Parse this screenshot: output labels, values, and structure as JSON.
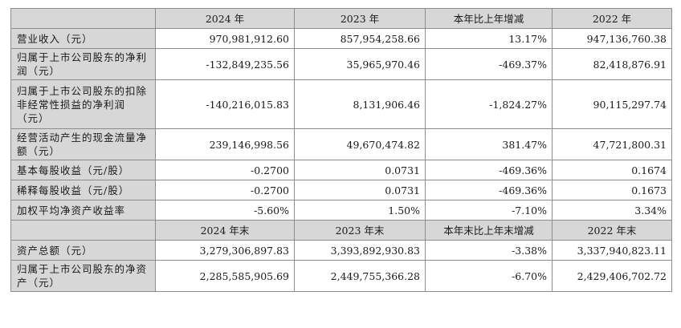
{
  "header1": [
    "",
    "2024 年",
    "2023 年",
    "本年比上年增减",
    "2022 年"
  ],
  "rows1": [
    {
      "label": "营业收入（元）",
      "values": [
        "970,981,912.60",
        "857,954,258.66",
        "13.17%",
        "947,136,760.38"
      ],
      "size": "h1"
    },
    {
      "label": "归属于上市公司股东的净利润（元）",
      "values": [
        "-132,849,235.56",
        "35,965,970.46",
        "-469.37%",
        "82,418,876.91"
      ],
      "size": "h2"
    },
    {
      "label": "归属于上市公司股东的扣除非经常性损益的净利润（元）",
      "values": [
        "-140,216,015.83",
        "8,131,906.46",
        "-1,824.27%",
        "90,115,297.74"
      ],
      "size": "h3"
    },
    {
      "label": "经营活动产生的现金流量净额（元）",
      "values": [
        "239,146,998.56",
        "49,670,474.82",
        "381.47%",
        "47,721,800.31"
      ],
      "size": "h2"
    },
    {
      "label": "基本每股收益（元/股）",
      "values": [
        "-0.2700",
        "0.0731",
        "-469.36%",
        "0.1674"
      ],
      "size": "h1"
    },
    {
      "label": "稀释每股收益（元/股）",
      "values": [
        "-0.2700",
        "0.0731",
        "-469.36%",
        "0.1673"
      ],
      "size": "h1"
    },
    {
      "label": "加权平均净资产收益率",
      "values": [
        "-5.60%",
        "1.50%",
        "-7.10%",
        "3.34%"
      ],
      "size": "h1"
    }
  ],
  "header2": [
    "",
    "2024 年末",
    "2023 年末",
    "本年末比上年末增减",
    "2022 年末"
  ],
  "rows2": [
    {
      "label": "资产总额（元）",
      "values": [
        "3,279,306,897.83",
        "3,393,892,930.83",
        "-3.38%",
        "3,337,940,823.11"
      ],
      "size": "h1"
    },
    {
      "label": "归属于上市公司股东的净资产（元）",
      "values": [
        "2,285,585,905.69",
        "2,449,755,366.28",
        "-6.70%",
        "2,429,406,702.72"
      ],
      "size": "h2"
    }
  ]
}
